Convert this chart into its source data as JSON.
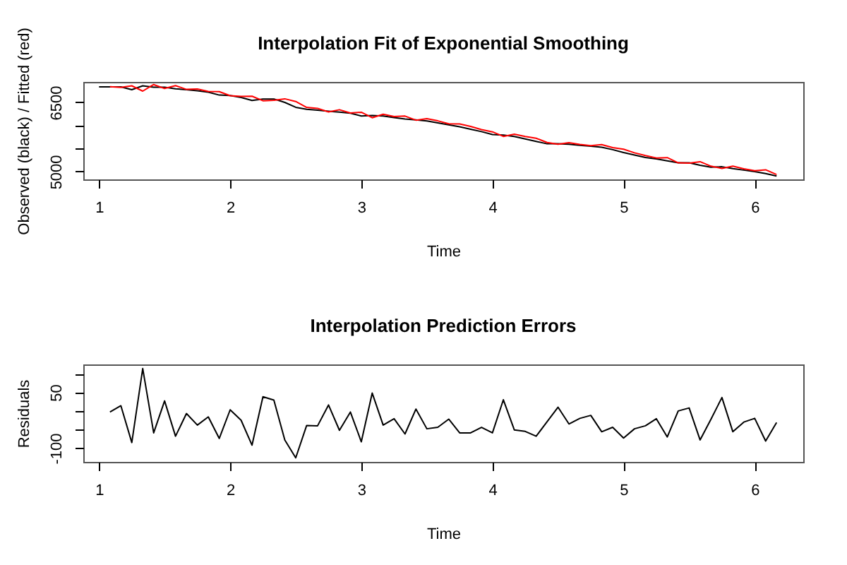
{
  "chart_data": [
    {
      "type": "line",
      "title": "Interpolation Fit of Exponential Smoothing",
      "xlabel": "Time",
      "ylabel": "Observed (black) / Fitted (red)",
      "x": [
        1,
        1.0833,
        1.1667,
        1.25,
        1.3333,
        1.4167,
        1.5,
        1.5833,
        1.6667,
        1.75,
        1.8333,
        1.9167,
        2,
        2.0833,
        2.1667,
        2.25,
        2.3333,
        2.4167,
        2.5,
        2.5833,
        2.6667,
        2.75,
        2.8333,
        2.9167,
        3,
        3.0833,
        3.1667,
        3.25,
        3.3333,
        3.4167,
        3.5,
        3.5833,
        3.6667,
        3.75,
        3.8333,
        3.9167,
        4,
        4.0833,
        4.1667,
        4.25,
        4.3333,
        4.4167,
        4.5,
        4.5833,
        4.6667,
        4.75,
        4.8333,
        4.9167,
        5,
        5.0833,
        5.1667,
        5.25,
        5.3333,
        5.4167,
        5.5,
        5.5833,
        5.6667,
        5.75,
        5.8333,
        5.9167,
        6,
        6.0833,
        6.1667
      ],
      "series": [
        {
          "color": "#000000",
          "values": [
            6838,
            6838,
            6838,
            6775,
            6859,
            6828,
            6828,
            6796,
            6775,
            6754,
            6722,
            6659,
            6648,
            6606,
            6542,
            6574,
            6574,
            6500,
            6394,
            6352,
            6331,
            6310,
            6289,
            6267,
            6204,
            6215,
            6204,
            6172,
            6141,
            6119,
            6098,
            6056,
            6014,
            5972,
            5919,
            5866,
            5802,
            5792,
            5760,
            5707,
            5654,
            5602,
            5602,
            5591,
            5570,
            5549,
            5528,
            5475,
            5411,
            5358,
            5306,
            5274,
            5232,
            5189,
            5189,
            5136,
            5094,
            5104,
            5062,
            5031,
            4999,
            4957,
            4904
          ]
        },
        {
          "color": "#ff0000",
          "values": [
            null,
            6841,
            6824,
            6860,
            6745,
            6887,
            6801,
            6864,
            6782,
            6792,
            6738,
            6733,
            6645,
            6631,
            6634,
            6536,
            6545,
            6578,
            6520,
            6391,
            6371,
            6294,
            6341,
            6270,
            6287,
            6167,
            6242,
            6193,
            6203,
            6114,
            6146,
            6100,
            6036,
            6031,
            5978,
            5910,
            5861,
            5762,
            5811,
            5762,
            5722,
            5631,
            5592,
            5626,
            5590,
            5561,
            5584,
            5519,
            5484,
            5406,
            5346,
            5295,
            5302,
            5189,
            5181,
            5214,
            5116,
            5068,
            5118,
            5061,
            5019,
            5038,
            4935
          ]
        }
      ],
      "xlim": [
        0.88,
        6.37
      ],
      "ylim": [
        4830,
        6944
      ],
      "xticks": [
        1,
        2,
        3,
        4,
        5,
        6
      ],
      "yticks": [
        5000,
        {
          "value": 5500,
          "label": null
        },
        {
          "value": 6000,
          "label": null
        },
        6500
      ]
    },
    {
      "type": "line",
      "title": "Interpolation Prediction Errors",
      "xlabel": "Time",
      "ylabel": "Residuals",
      "x": [
        1.0833,
        1.1667,
        1.25,
        1.3333,
        1.4167,
        1.5,
        1.5833,
        1.6667,
        1.75,
        1.8333,
        1.9167,
        2,
        2.0833,
        2.1667,
        2.25,
        2.3333,
        2.4167,
        2.5,
        2.5833,
        2.6667,
        2.75,
        2.8333,
        2.9167,
        3,
        3.0833,
        3.1667,
        3.25,
        3.3333,
        3.4167,
        3.5,
        3.5833,
        3.6667,
        3.75,
        3.8333,
        3.9167,
        4,
        4.0833,
        4.1667,
        4.25,
        4.3333,
        4.4167,
        4.5,
        4.5833,
        4.6667,
        4.75,
        4.8333,
        4.9167,
        5,
        5.0833,
        5.1667,
        5.25,
        5.3333,
        5.4167,
        5.5,
        5.5833,
        5.6667,
        5.75,
        5.8333,
        5.9167,
        6,
        6.0833,
        6.1667
      ],
      "series": [
        {
          "color": "#000000",
          "values": [
            -3,
            14,
            -85,
            114,
            -59,
            27,
            -68,
            -7,
            -38,
            -16,
            -74,
            3,
            -25,
            -92,
            38,
            29,
            -78,
            -126,
            -39,
            -40,
            16,
            -52,
            -3,
            -83,
            48,
            -38,
            -21,
            -62,
            5,
            -48,
            -44,
            -22,
            -59,
            -59,
            -44,
            -59,
            30,
            -51,
            -55,
            -68,
            -29,
            10,
            -35,
            -20,
            -12,
            -56,
            -44,
            -73,
            -48,
            -40,
            -21,
            -70,
            0,
            8,
            -78,
            -22,
            36,
            -56,
            -30,
            -20,
            -81,
            -31
          ]
        }
      ],
      "xlim": [
        0.88,
        6.37
      ],
      "ylim": [
        -137,
        125
      ],
      "xticks": [
        1,
        2,
        3,
        4,
        5,
        6
      ],
      "yticks": [
        -100,
        {
          "value": -50,
          "label": null
        },
        {
          "value": 0,
          "label": null
        },
        50,
        {
          "value": 100,
          "label": null
        }
      ]
    }
  ]
}
